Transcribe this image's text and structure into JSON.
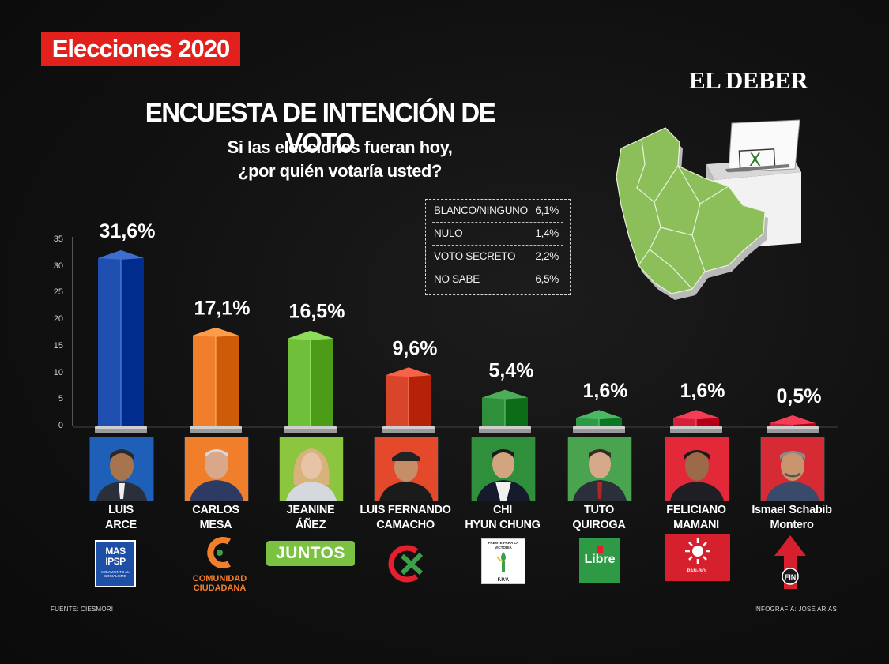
{
  "badge": "Elecciones 2020",
  "brand": "EL DEBER",
  "title": "ENCUESTA DE INTENCIÓN DE VOTO",
  "subtitle": {
    "line1": "Si las elecciones fueran hoy,",
    "line2": "¿por quién votaría usted?"
  },
  "others": [
    {
      "label": "BLANCO/NINGUNO",
      "value": "6,1%"
    },
    {
      "label": "NULO",
      "value": "1,4%"
    },
    {
      "label": "VOTO SECRETO",
      "value": "2,2%"
    },
    {
      "label": "NO SABE",
      "value": "6,5%"
    }
  ],
  "chart_data": {
    "type": "bar",
    "title": "ENCUESTA DE INTENCIÓN DE VOTO",
    "categories": [
      "LUIS ARCE",
      "CARLOS MESA",
      "JEANINE ÁÑEZ",
      "LUIS FERNANDO CAMACHO",
      "CHI HYUN CHUNG",
      "TUTO QUIROGA",
      "FELICIANO MAMANI",
      "Ismael Schabib Montero"
    ],
    "values": [
      31.6,
      17.1,
      16.5,
      9.6,
      5.4,
      1.6,
      1.6,
      0.5
    ],
    "value_labels": [
      "31,6%",
      "17,1%",
      "16,5%",
      "9,6%",
      "5,4%",
      "1,6%",
      "1,6%",
      "0,5%"
    ],
    "bar_colors": [
      "#1f4fb0",
      "#f07e2b",
      "#6fbf3a",
      "#d9452a",
      "#2f8f3a",
      "#2f9a45",
      "#d6203a",
      "#d6203a"
    ],
    "ylim": [
      0,
      35
    ],
    "yticks": [
      0,
      5,
      10,
      15,
      20,
      25,
      30,
      35
    ],
    "grid": false,
    "legend": "none"
  },
  "candidates": [
    {
      "name1": "LUIS",
      "name2": "ARCE",
      "party": "MAS IPSP",
      "party_sub": "MOVIMIENTO AL SOCIALISMO",
      "photo_bg": "#1e5fb8"
    },
    {
      "name1": "CARLOS",
      "name2": "MESA",
      "party": "COMUNIDAD CIUDADANA",
      "photo_bg": "#f07e2b"
    },
    {
      "name1": "JEANINE",
      "name2": "ÁÑEZ",
      "party": "JUNTOS",
      "photo_bg": "#8cc63f"
    },
    {
      "name1": "LUIS FERNANDO",
      "name2": "CAMACHO",
      "party": "CREEMOS",
      "photo_bg": "#e3492a"
    },
    {
      "name1": "CHI",
      "name2": "HYUN CHUNG",
      "party": "FRENTE PARA LA VICTORIA",
      "party_sub": "F.P.V.",
      "photo_bg": "#2f8f3a"
    },
    {
      "name1": "TUTO",
      "name2": "QUIROGA",
      "party": "Libre",
      "photo_bg": "#4aa34f"
    },
    {
      "name1": "FELICIANO",
      "name2": "MAMANI",
      "party": "PAN-BOL",
      "photo_bg": "#e3283a"
    },
    {
      "name1": "Ismael Schabib",
      "name2": "Montero",
      "party": "FIN",
      "photo_bg": "#d62a35"
    }
  ],
  "footer": {
    "source": "FUENTE: CIESMORI",
    "credit": "INFOGRAFÍA: JOSÉ ARIAS"
  },
  "ballot_mark": "X"
}
